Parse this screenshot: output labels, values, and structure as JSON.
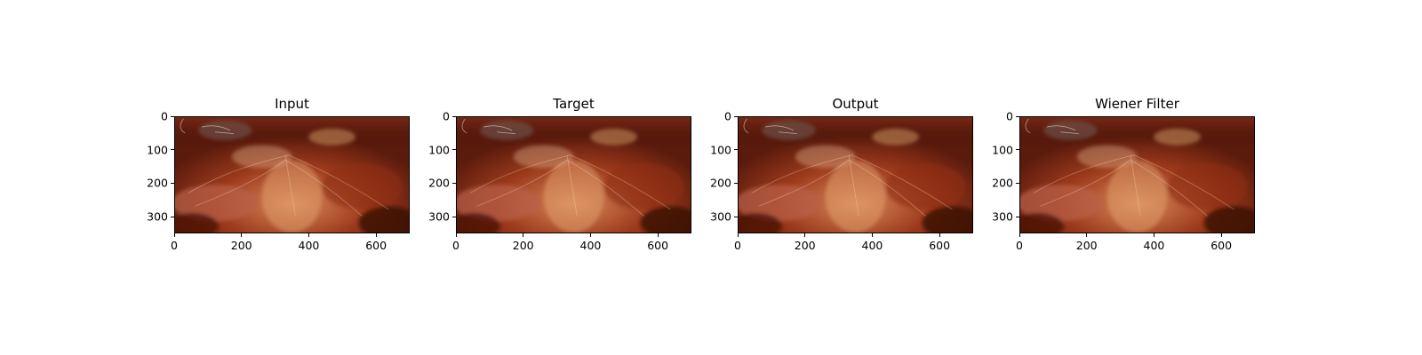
{
  "figure": {
    "panels": [
      {
        "title": "Input",
        "x_ticks": [
          "0",
          "200",
          "400",
          "600"
        ],
        "y_ticks": [
          "0",
          "100",
          "200",
          "300"
        ],
        "image": "laparoscopic-surgery-frame-icon"
      },
      {
        "title": "Target",
        "x_ticks": [
          "0",
          "200",
          "400",
          "600"
        ],
        "y_ticks": [
          "0",
          "100",
          "200",
          "300"
        ],
        "image": "laparoscopic-surgery-frame-icon"
      },
      {
        "title": "Output",
        "x_ticks": [
          "0",
          "200",
          "400",
          "600"
        ],
        "y_ticks": [
          "0",
          "100",
          "200",
          "300"
        ],
        "image": "laparoscopic-surgery-frame-icon"
      },
      {
        "title": "Wiener Filter",
        "x_ticks": [
          "0",
          "200",
          "400",
          "600"
        ],
        "y_ticks": [
          "0",
          "100",
          "200",
          "300"
        ],
        "image": "laparoscopic-surgery-frame-icon"
      }
    ],
    "colors": {
      "tissue_dark": "#5a1a0c",
      "tissue_mid": "#9c3a1c",
      "tissue_light": "#d98a5a",
      "highlight": "#f2c9a0"
    }
  }
}
